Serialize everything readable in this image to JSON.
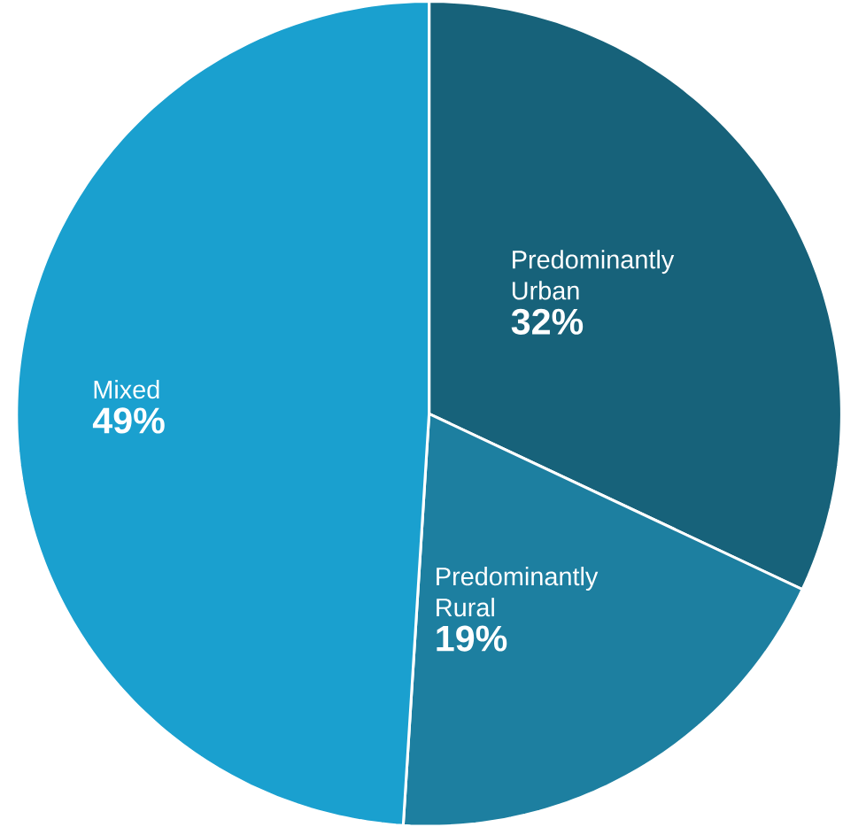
{
  "chart_data": {
    "type": "pie",
    "categories": [
      "Predominantly Urban",
      "Predominantly Rural",
      "Mixed"
    ],
    "values": [
      32,
      19,
      49
    ],
    "colors": [
      "#17627a",
      "#1d7fa0",
      "#1aa0cf"
    ],
    "value_labels": [
      "32%",
      "19%",
      "49%"
    ]
  }
}
